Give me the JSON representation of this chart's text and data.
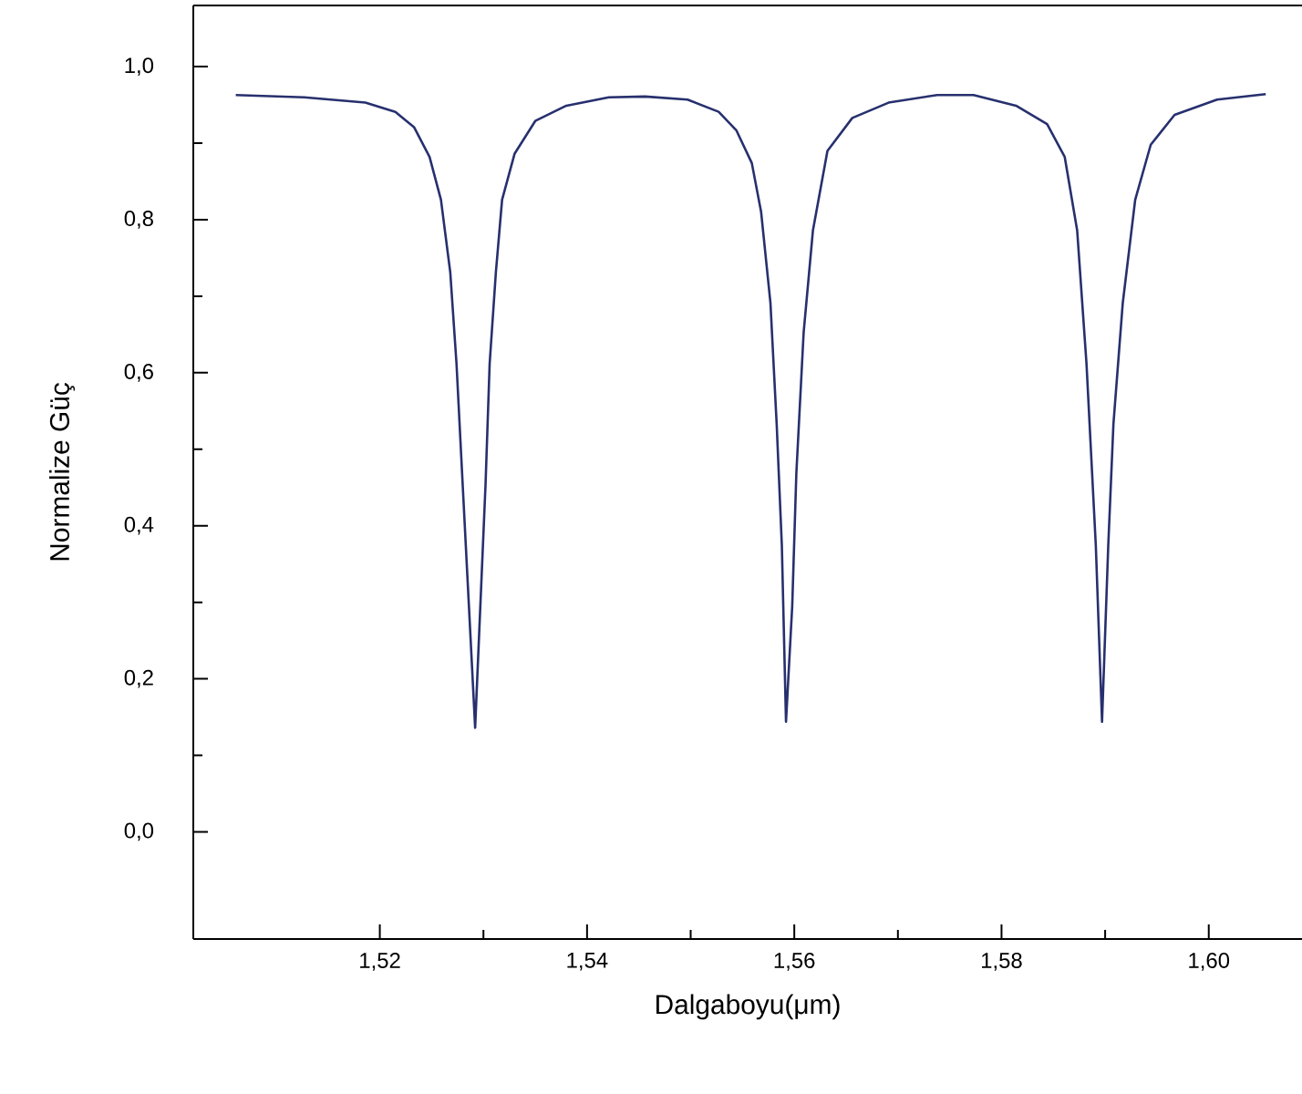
{
  "chart_data": {
    "type": "line",
    "xlabel": "Dalgaboyu(μm)",
    "ylabel": "Normalize Güç",
    "xlim": [
      1.502,
      1.609
    ],
    "ylim": [
      -0.14,
      1.08
    ],
    "xticks": [
      {
        "value": 1.52,
        "label": "1,52"
      },
      {
        "value": 1.54,
        "label": "1,54"
      },
      {
        "value": 1.56,
        "label": "1,56"
      },
      {
        "value": 1.58,
        "label": "1,58"
      },
      {
        "value": 1.6,
        "label": "1,60"
      }
    ],
    "yticks": [
      {
        "value": 0.0,
        "label": "0,0"
      },
      {
        "value": 0.2,
        "label": "0,2"
      },
      {
        "value": 0.4,
        "label": "0,4"
      },
      {
        "value": 0.6,
        "label": "0,6"
      },
      {
        "value": 0.8,
        "label": "0,8"
      },
      {
        "value": 1.0,
        "label": "1,0"
      }
    ],
    "series": [
      {
        "color": "#27306e",
        "x": [
          1.5061,
          1.5127,
          1.5186,
          1.5215,
          1.5233,
          1.5248,
          1.5259,
          1.5268,
          1.5274,
          1.528,
          1.5286,
          1.5292,
          1.5297,
          1.5302,
          1.5306,
          1.5312,
          1.5318,
          1.533,
          1.535,
          1.538,
          1.5421,
          1.5456,
          1.5497,
          1.5527,
          1.5544,
          1.5559,
          1.5568,
          1.5577,
          1.5583,
          1.5588,
          1.5592,
          1.5598,
          1.5602,
          1.5609,
          1.5618,
          1.5632,
          1.5656,
          1.5691,
          1.5738,
          1.5773,
          1.5814,
          1.5844,
          1.5861,
          1.5873,
          1.5882,
          1.5891,
          1.5897,
          1.5903,
          1.5908,
          1.5917,
          1.5929,
          1.5944,
          1.5967,
          1.6008,
          1.6055
        ],
        "values": [
          0.963,
          0.96,
          0.953,
          0.941,
          0.921,
          0.882,
          0.826,
          0.731,
          0.612,
          0.453,
          0.295,
          0.136,
          0.295,
          0.453,
          0.612,
          0.731,
          0.826,
          0.886,
          0.929,
          0.949,
          0.96,
          0.961,
          0.957,
          0.941,
          0.917,
          0.874,
          0.81,
          0.691,
          0.533,
          0.374,
          0.144,
          0.295,
          0.469,
          0.652,
          0.786,
          0.89,
          0.933,
          0.953,
          0.963,
          0.963,
          0.949,
          0.925,
          0.882,
          0.786,
          0.612,
          0.374,
          0.144,
          0.374,
          0.533,
          0.691,
          0.826,
          0.898,
          0.937,
          0.957,
          0.964
        ]
      }
    ]
  }
}
